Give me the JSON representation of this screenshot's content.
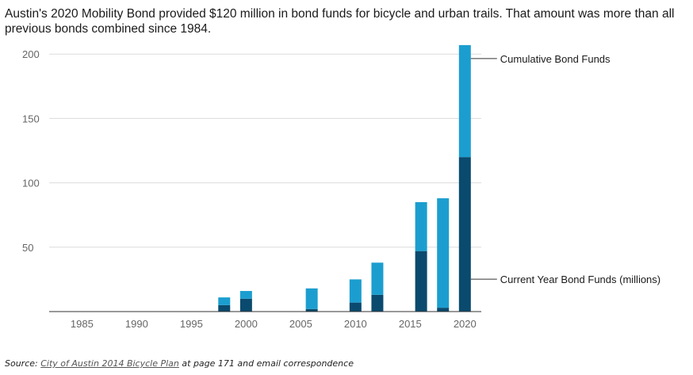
{
  "title": "Austin's 2020 Mobility Bond provided $120 million in bond funds for bicycle and urban trails. That amount was more than all previous bonds combined since 1984.",
  "source": {
    "prefix": "Source: ",
    "link_text": "City of Austin 2014 Bicycle Plan",
    "suffix": " at page 171 and email correspondence"
  },
  "colors": {
    "current": "#0a4a6e",
    "cumulative": "#1b9ecf",
    "grid": "#dcdcdc",
    "axis_text": "#666666"
  },
  "chart_data": {
    "type": "bar",
    "stacked": true,
    "x": [
      1998,
      2000,
      2006,
      2010,
      2012,
      2016,
      2018,
      2020
    ],
    "series": [
      {
        "name": "Current Year Bond Funds (millions)",
        "values": [
          5,
          10,
          2,
          7,
          13,
          47,
          3,
          120
        ]
      },
      {
        "name": "Cumulative Bond Funds",
        "values": [
          6,
          6,
          16,
          18,
          25,
          38,
          85,
          87
        ]
      }
    ],
    "xticks": [
      1985,
      1990,
      1995,
      2000,
      2005,
      2010,
      2015,
      2020
    ],
    "yticks": [
      50,
      100,
      150,
      200
    ],
    "xlim": [
      1982,
      2021.5
    ],
    "ylim": [
      0,
      210
    ],
    "grid": true,
    "legend": "direct labels at right"
  }
}
